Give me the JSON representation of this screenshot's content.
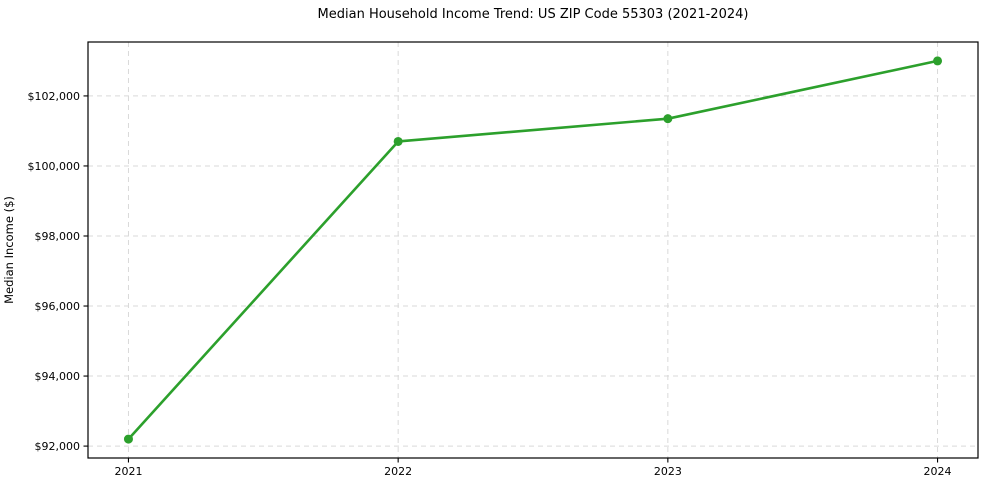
{
  "figure": {
    "background": "#ffffff"
  },
  "chart_data": {
    "type": "line",
    "title": "Median Household Income Trend: US ZIP Code 55303 (2021-2024)",
    "xlabel": "",
    "ylabel": "Median Income ($)",
    "x": [
      2021,
      2022,
      2023,
      2024
    ],
    "x_tick_labels": [
      "2021",
      "2022",
      "2023",
      "2024"
    ],
    "series": [
      {
        "name": "Median Household Income",
        "values": [
          92200,
          100700,
          101350,
          103000
        ],
        "color": "#2ca02c",
        "marker": "circle",
        "marker_radius": 4.5,
        "line_width": 2.6
      }
    ],
    "y_ticks": [
      92000,
      94000,
      96000,
      98000,
      100000,
      102000
    ],
    "y_tick_labels": [
      "$92,000",
      "$94,000",
      "$96,000",
      "$98,000",
      "$100,000",
      "$102,000"
    ],
    "xlim": [
      2020.85,
      2024.15
    ],
    "ylim": [
      91660,
      103540
    ],
    "grid": true,
    "grid_style": "dashed",
    "grid_color": "#d9d9d9",
    "spine_color": "#000000",
    "tick_color": "#000000",
    "legend": "none"
  }
}
